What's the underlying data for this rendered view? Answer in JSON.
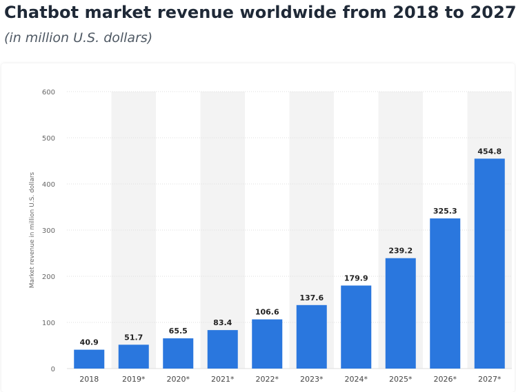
{
  "header": {
    "title": "Chatbot market revenue worldwide from 2018 to 2027",
    "subtitle": "(in million U.S. dollars)"
  },
  "colors": {
    "bar": "#2a77de",
    "band": "#f3f3f3",
    "grid": "#dcdcdc"
  },
  "chart_data": {
    "type": "bar",
    "title": "Chatbot market revenue worldwide from 2018 to 2027",
    "subtitle": "(in million U.S. dollars)",
    "xlabel": "",
    "ylabel": "Market revenue in million U.S. dollars",
    "categories": [
      "2018",
      "2019*",
      "2020*",
      "2021*",
      "2022*",
      "2023*",
      "2024*",
      "2025*",
      "2026*",
      "2027*"
    ],
    "values": [
      40.9,
      51.7,
      65.5,
      83.4,
      106.6,
      137.6,
      179.9,
      239.2,
      325.3,
      454.8
    ],
    "value_labels": [
      "40.9",
      "51.7",
      "65.5",
      "83.4",
      "106.6",
      "137.6",
      "179.9",
      "239.2",
      "325.3",
      "454.8"
    ],
    "ylim": [
      0,
      600
    ],
    "yticks": [
      0,
      100,
      200,
      300,
      400,
      500,
      600
    ],
    "grid": true,
    "legend": "none"
  }
}
